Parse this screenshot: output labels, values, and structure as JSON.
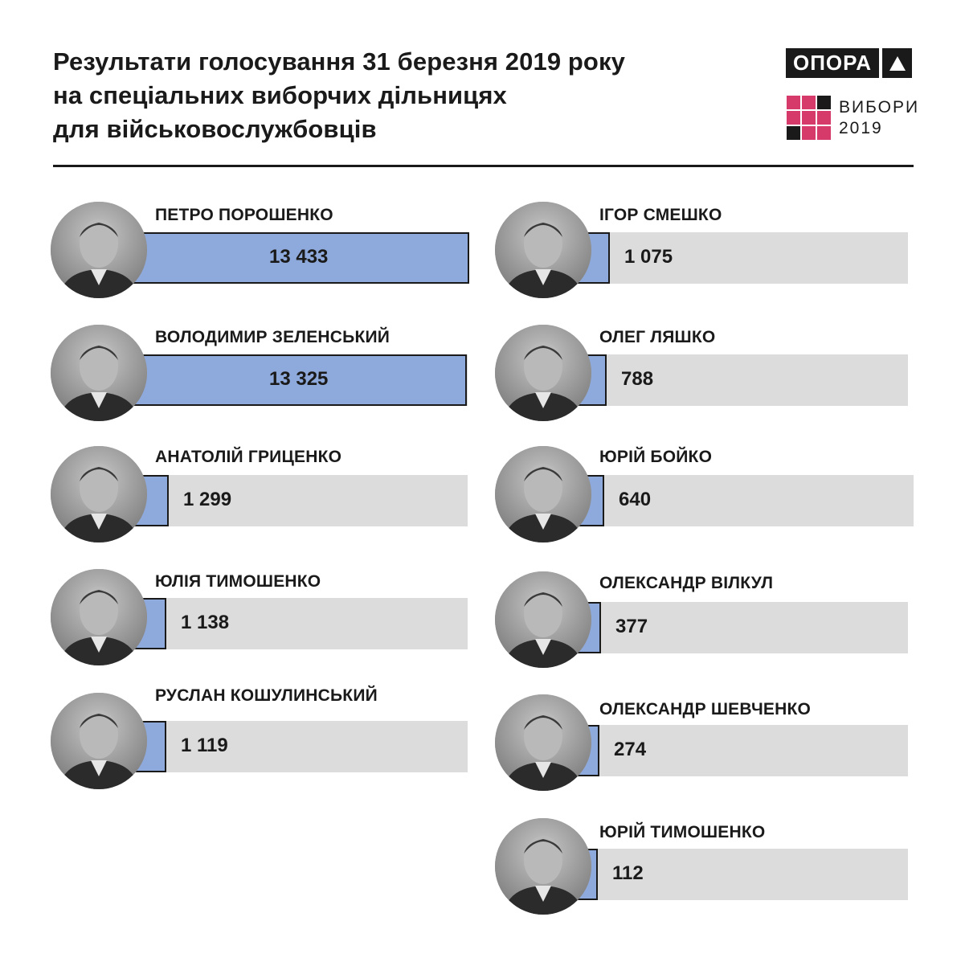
{
  "header": {
    "title_lines": [
      "Результати голосування 31 березня 2019 року",
      "на спеціальних виборчих дільницях",
      "для військовослужбовців"
    ]
  },
  "logos": {
    "opora": "ОПОРА",
    "vybory_line1": "ВИБОРИ",
    "vybory_line2": "2019",
    "grid_colors": [
      "#d63a6b",
      "#d63a6b",
      "#1a1a1a",
      "#d63a6b",
      "#d63a6b",
      "#d63a6b",
      "#1a1a1a",
      "#d63a6b",
      "#d63a6b"
    ]
  },
  "colors": {
    "bar_fill": "#8ea9db",
    "bar_track": "#dcdcdc",
    "text": "#1a1a1a",
    "accent_pink": "#d63a6b"
  },
  "chart_data": {
    "type": "bar",
    "orientation": "horizontal",
    "xlim": [
      0,
      13433
    ],
    "categories": [
      "ПЕТРО ПОРОШЕНКО",
      "ВОЛОДИМИР ЗЕЛЕНСЬКИЙ",
      "АНАТОЛІЙ ГРИЦЕНКО",
      "ЮЛІЯ ТИМОШЕНКО",
      "РУСЛАН КОШУЛИНСЬКИЙ",
      "ІГОР СМЕШКО",
      "ОЛЕГ ЛЯШКО",
      "ЮРІЙ БОЙКО",
      "ОЛЕКСАНДР ВІЛКУЛ",
      "ОЛЕКСАНДР ШЕВЧЕНКО",
      "ЮРІЙ ТИМОШЕНКО"
    ],
    "values": [
      13433,
      13325,
      1299,
      1138,
      1119,
      1075,
      788,
      640,
      377,
      274,
      112
    ],
    "value_labels": [
      "13 433",
      "13 325",
      "1 299",
      "1 138",
      "1 119",
      "1 075",
      "788",
      "640",
      "377",
      "274",
      "112"
    ]
  }
}
